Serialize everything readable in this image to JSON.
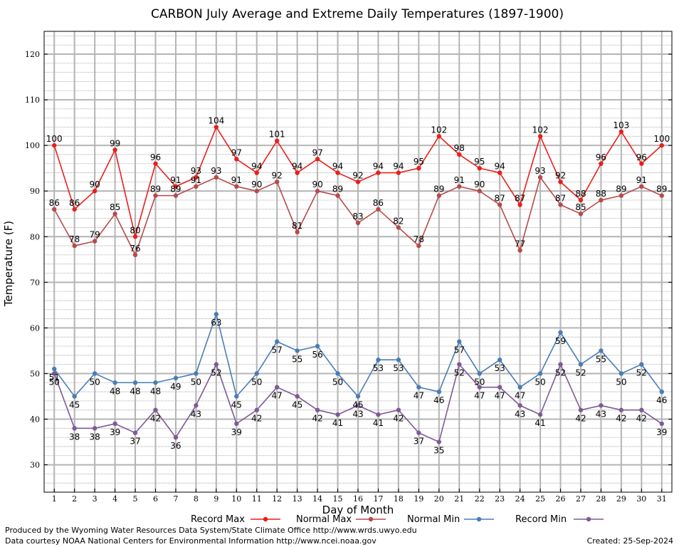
{
  "chart_data": {
    "type": "line",
    "title": "CARBON July Average and Extreme Daily Temperatures (1897-1900)",
    "xlabel": "Day of Month",
    "ylabel": "Temperature (F)",
    "x": [
      1,
      2,
      3,
      4,
      5,
      6,
      7,
      8,
      9,
      10,
      11,
      12,
      13,
      14,
      15,
      16,
      17,
      18,
      19,
      20,
      21,
      22,
      23,
      24,
      25,
      26,
      27,
      28,
      29,
      30,
      31
    ],
    "xlim": [
      0.5,
      31.5
    ],
    "ylim": [
      24,
      125
    ],
    "yticks": [
      30,
      40,
      50,
      60,
      70,
      80,
      90,
      100,
      110,
      120
    ],
    "grid": true,
    "legend_position": "bottom",
    "series": [
      {
        "name": "Record Max",
        "color": "#e8201c",
        "values": [
          100,
          86,
          90,
          99,
          80,
          96,
          91,
          93,
          104,
          97,
          94,
          101,
          94,
          97,
          94,
          92,
          94,
          94,
          95,
          102,
          98,
          95,
          94,
          87,
          102,
          92,
          88,
          96,
          103,
          96,
          100
        ]
      },
      {
        "name": "Normal Max",
        "color": "#b84a4a",
        "values": [
          86,
          78,
          79,
          85,
          76,
          89,
          89,
          91,
          93,
          91,
          90,
          92,
          81,
          90,
          89,
          83,
          86,
          82,
          78,
          89,
          91,
          90,
          87,
          77,
          93,
          87,
          85,
          88,
          89,
          91,
          89
        ]
      },
      {
        "name": "Normal Min",
        "color": "#4a7db4",
        "values": [
          51,
          45,
          50,
          48,
          48,
          48,
          49,
          50,
          63,
          45,
          50,
          57,
          55,
          56,
          50,
          45,
          53,
          53,
          47,
          46,
          57,
          50,
          53,
          47,
          50,
          59,
          52,
          55,
          50,
          52,
          46
        ]
      },
      {
        "name": "Record Min",
        "color": "#7e5a96",
        "values": [
          50,
          38,
          38,
          39,
          37,
          42,
          36,
          43,
          52,
          39,
          42,
          47,
          45,
          42,
          41,
          43,
          41,
          42,
          37,
          35,
          52,
          47,
          47,
          43,
          41,
          52,
          42,
          43,
          42,
          42,
          39
        ]
      }
    ]
  },
  "footer": {
    "produced_by": "Produced by the Wyoming Water Resources Data System/State Climate Office http://www.wrds.uwyo.edu",
    "courtesy": "Data courtesy NOAA National Centers for Environmental Information http://www.ncei.noaa.gov",
    "created": "Created:  25-Sep-2024"
  }
}
